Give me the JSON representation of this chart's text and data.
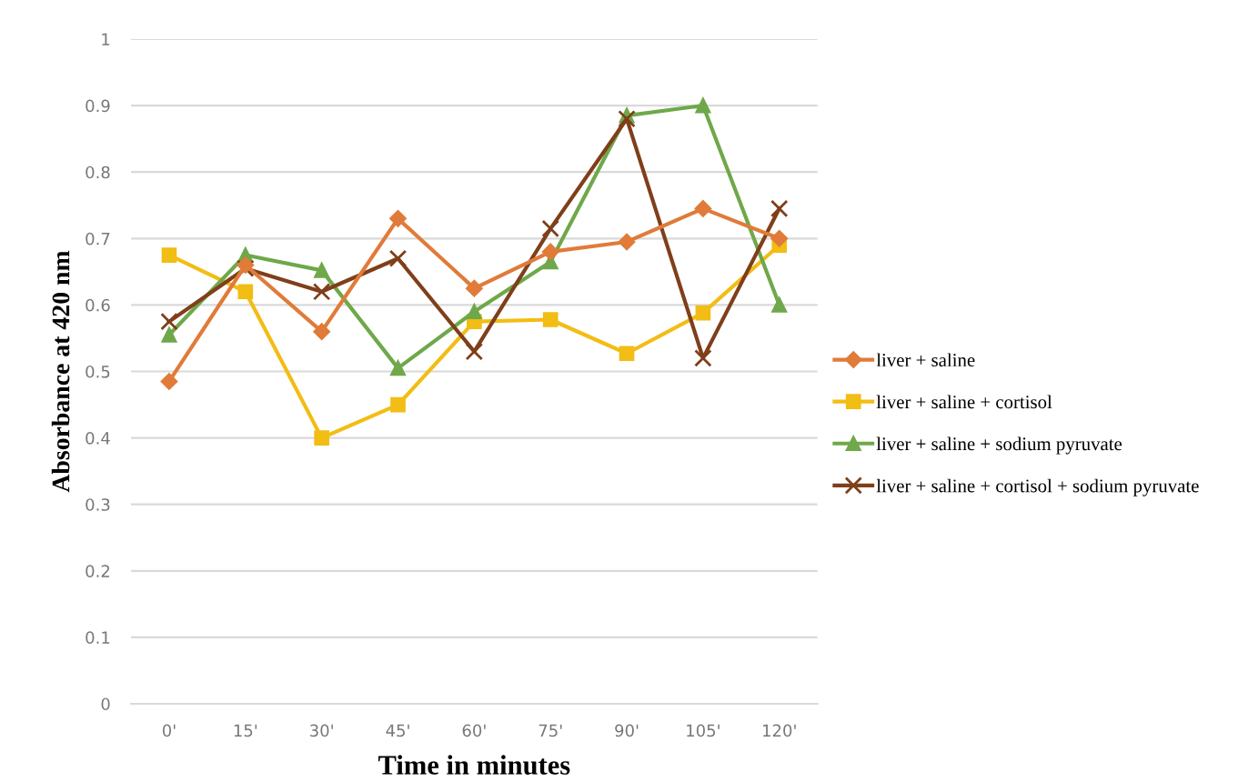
{
  "chart_data": {
    "type": "line",
    "xlabel": "Time in minutes",
    "ylabel": "Absorbance at 420 nm",
    "categories": [
      "0'",
      "15'",
      "30'",
      "45'",
      "60'",
      "75'",
      "90'",
      "105'",
      "120'"
    ],
    "series": [
      {
        "name": "liver + saline",
        "color": "#e07b39",
        "marker": "diamond",
        "values": [
          0.485,
          0.66,
          0.56,
          0.73,
          0.625,
          0.68,
          0.695,
          0.745,
          0.7
        ]
      },
      {
        "name": "liver + saline + cortisol",
        "color": "#f2bd14",
        "marker": "square",
        "values": [
          0.675,
          0.62,
          0.4,
          0.45,
          0.575,
          0.578,
          0.527,
          0.588,
          0.69
        ]
      },
      {
        "name": "liver + saline + sodium pyruvate",
        "color": "#6fa84a",
        "marker": "triangle",
        "values": [
          0.555,
          0.675,
          0.652,
          0.505,
          0.59,
          0.665,
          0.885,
          0.9,
          0.6
        ]
      },
      {
        "name": "liver + saline + cortisol + sodium pyruvate",
        "color": "#7f3f1a",
        "marker": "cross",
        "values": [
          0.575,
          0.655,
          0.62,
          0.67,
          0.53,
          0.715,
          0.88,
          0.52,
          0.745
        ]
      }
    ],
    "ylim": [
      0,
      1
    ],
    "yticks": [
      0,
      0.1,
      0.2,
      0.3,
      0.4,
      0.5,
      0.6,
      0.7,
      0.8,
      0.9,
      1
    ],
    "grid": "y",
    "legend": "right"
  }
}
